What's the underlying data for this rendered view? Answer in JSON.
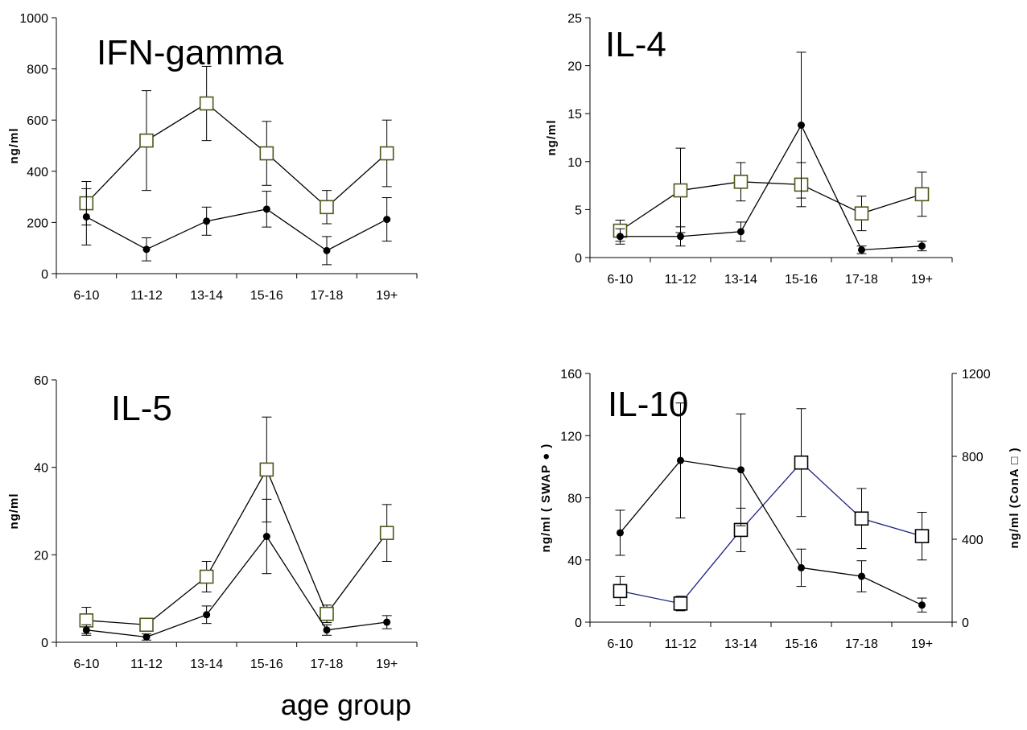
{
  "figure": {
    "xlabel": "age group"
  },
  "chart_data": [
    {
      "type": "line",
      "title": "IFN-gamma",
      "ylabel": "ng/ml",
      "ylim": [
        0,
        1000
      ],
      "yticks": [
        "0",
        "200",
        "400",
        "600",
        "800",
        "1000"
      ],
      "categories": [
        "6-10",
        "11-12",
        "13-14",
        "15-16",
        "17-18",
        "19+"
      ],
      "series": [
        {
          "marker": "square",
          "color": "#000000",
          "marker_edge": "#4a5a1a",
          "values": [
            275,
            520,
            665,
            470,
            260,
            470
          ],
          "errors": [
            85,
            195,
            145,
            125,
            65,
            130
          ]
        },
        {
          "marker": "circle",
          "color": "#000000",
          "marker_edge": "#000000",
          "values": [
            222,
            95,
            205,
            252,
            90,
            212
          ],
          "errors": [
            110,
            45,
            55,
            70,
            55,
            85
          ]
        }
      ]
    },
    {
      "type": "line",
      "title": "IL-4",
      "ylabel": "ng/ml",
      "ylim": [
        0,
        25
      ],
      "yticks": [
        "0",
        "5",
        "10",
        "15",
        "20",
        "25"
      ],
      "categories": [
        "6-10",
        "11-12",
        "13-14",
        "15-16",
        "17-18",
        "19+"
      ],
      "series": [
        {
          "marker": "square",
          "color": "#000000",
          "marker_edge": "#4a5a1a",
          "values": [
            2.8,
            7.0,
            7.9,
            7.6,
            4.6,
            6.6
          ],
          "errors": [
            1.1,
            4.4,
            2.0,
            2.3,
            1.8,
            2.3
          ]
        },
        {
          "marker": "circle",
          "color": "#000000",
          "marker_edge": "#000000",
          "values": [
            2.2,
            2.2,
            2.7,
            13.8,
            0.8,
            1.2
          ],
          "errors": [
            0.8,
            1.0,
            1.0,
            7.6,
            0.4,
            0.5
          ]
        }
      ]
    },
    {
      "type": "line",
      "title": "IL-5",
      "ylabel": "ng/ml",
      "ylim": [
        0,
        60
      ],
      "yticks": [
        "0",
        "20",
        "40",
        "60"
      ],
      "categories": [
        "6-10",
        "11-12",
        "13-14",
        "15-16",
        "17-18",
        "19+"
      ],
      "series": [
        {
          "marker": "square",
          "color": "#000000",
          "marker_edge": "#4a5a1a",
          "values": [
            5.0,
            4.0,
            15.0,
            39.5,
            6.5,
            25.0
          ],
          "errors": [
            3.0,
            1.5,
            3.5,
            12.0,
            2.0,
            6.5
          ]
        },
        {
          "marker": "circle",
          "color": "#000000",
          "marker_edge": "#000000",
          "values": [
            2.8,
            1.2,
            6.3,
            24.2,
            2.8,
            4.6
          ],
          "errors": [
            1.2,
            0.7,
            2.0,
            8.5,
            1.2,
            1.5
          ]
        }
      ]
    },
    {
      "type": "line",
      "title": "IL-10",
      "ylabel": "ng/ml ( SWAP ● )",
      "ylabel_right": "ng/ml (ConA □ )",
      "ylim": [
        0,
        160
      ],
      "yticks": [
        "0",
        "40",
        "80",
        "120",
        "160"
      ],
      "ylim_right": [
        0,
        1200
      ],
      "yticks_right": [
        "0",
        "400",
        "800",
        "1200"
      ],
      "categories": [
        "6-10",
        "11-12",
        "13-14",
        "15-16",
        "17-18",
        "19+"
      ],
      "series": [
        {
          "marker": "square",
          "axis": "right",
          "color": "#1a237e",
          "marker_edge": "#000000",
          "values": [
            150,
            90,
            445,
            770,
            500,
            415
          ],
          "errors": [
            70,
            35,
            105,
            260,
            145,
            115
          ]
        },
        {
          "marker": "circle",
          "axis": "left",
          "color": "#000000",
          "marker_edge": "#000000",
          "values": [
            57.5,
            104,
            98,
            35,
            29.5,
            11
          ],
          "errors": [
            14.5,
            37,
            36,
            12,
            10,
            4.5
          ]
        }
      ]
    }
  ]
}
